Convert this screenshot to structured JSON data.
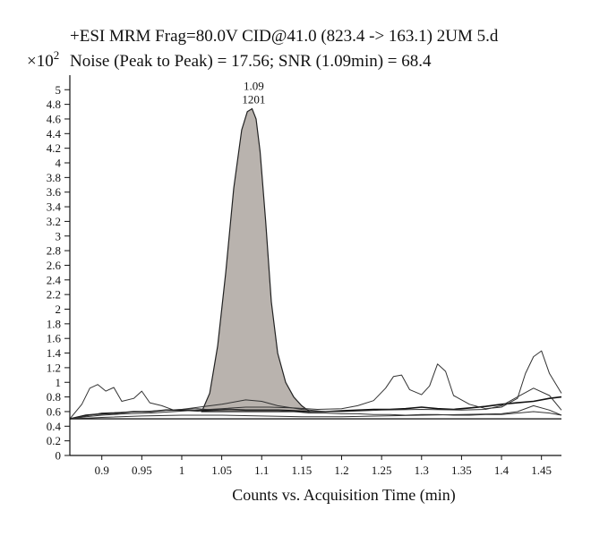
{
  "chart_data": {
    "type": "line",
    "title": "+ESI MRM Frag=80.0V CID@41.0 (823.4 -> 163.1) 2UM 5.d",
    "subtitle": "Noise (Peak to Peak) = 17.56; SNR (1.09min) = 68.4",
    "y_multiplier": "×10",
    "y_multiplier_exp": "2",
    "xlabel": "Counts vs. Acquisition Time (min)",
    "ylabel": "",
    "xlim": [
      0.86,
      1.475
    ],
    "ylim": [
      0,
      5.15
    ],
    "x_ticks": [
      0.9,
      0.95,
      1,
      1.05,
      1.1,
      1.15,
      1.2,
      1.25,
      1.3,
      1.35,
      1.4,
      1.45
    ],
    "x_tick_labels": [
      "0.9",
      "0.95",
      "1",
      "1.05",
      "1.1",
      "1.15",
      "1.2",
      "1.25",
      "1.3",
      "1.35",
      "1.4",
      "1.45"
    ],
    "y_ticks": [
      0,
      0.2,
      0.4,
      0.6,
      0.8,
      1,
      1.2,
      1.4,
      1.6,
      1.8,
      2,
      2.2,
      2.4,
      2.6,
      2.8,
      3,
      3.2,
      3.4,
      3.6,
      3.8,
      4,
      4.2,
      4.4,
      4.6,
      4.8,
      5
    ],
    "y_tick_labels": [
      "0",
      "0.2",
      "0.4",
      "0.6",
      "0.8",
      "1",
      "1.2",
      "1.4",
      "1.6",
      "1.8",
      "2",
      "2.2",
      "2.4",
      "2.6",
      "2.8",
      "3",
      "3.2",
      "3.4",
      "3.6",
      "3.8",
      "4",
      "4.2",
      "4.4",
      "4.6",
      "4.8",
      "5"
    ],
    "grid": false,
    "peak_annotation": {
      "x": 1.09,
      "y": 4.75,
      "lines": [
        "1.09",
        "1201"
      ]
    },
    "integrated_peak": {
      "fill": "#b9b3ae",
      "baseline": 0.6,
      "x": [
        1.025,
        1.035,
        1.045,
        1.055,
        1.065,
        1.075,
        1.082,
        1.088,
        1.093,
        1.098,
        1.105,
        1.112,
        1.12,
        1.13,
        1.14,
        1.15,
        1.16
      ],
      "y": [
        0.6,
        0.85,
        1.5,
        2.5,
        3.65,
        4.45,
        4.7,
        4.74,
        4.6,
        4.15,
        3.2,
        2.1,
        1.4,
        1.0,
        0.8,
        0.68,
        0.6
      ]
    },
    "series": [
      {
        "color": "#111111",
        "width": 1.6,
        "x": [
          0.86,
          0.88,
          0.9,
          0.92,
          0.94,
          0.96,
          0.98,
          1.0,
          1.02,
          1.04,
          1.06,
          1.08,
          1.1,
          1.12,
          1.14,
          1.16,
          1.18,
          1.2,
          1.22,
          1.24,
          1.26,
          1.28,
          1.3,
          1.32,
          1.34,
          1.36,
          1.38,
          1.4,
          1.42,
          1.44,
          1.46,
          1.475
        ],
        "y": [
          0.5,
          0.55,
          0.57,
          0.58,
          0.6,
          0.6,
          0.62,
          0.62,
          0.61,
          0.62,
          0.63,
          0.62,
          0.62,
          0.62,
          0.61,
          0.6,
          0.6,
          0.61,
          0.62,
          0.63,
          0.63,
          0.64,
          0.66,
          0.64,
          0.63,
          0.65,
          0.67,
          0.7,
          0.72,
          0.74,
          0.78,
          0.8
        ]
      },
      {
        "color": "#333333",
        "width": 1,
        "x": [
          0.86,
          0.875,
          0.885,
          0.895,
          0.905,
          0.915,
          0.925,
          0.94,
          0.95,
          0.96,
          0.975,
          0.99,
          1.0,
          1.02,
          1.04,
          1.06,
          1.08,
          1.1,
          1.12,
          1.14,
          1.16,
          1.18,
          1.2,
          1.22,
          1.24,
          1.26,
          1.28,
          1.3,
          1.32,
          1.34,
          1.36,
          1.38,
          1.4,
          1.42,
          1.44,
          1.46,
          1.475
        ],
        "y": [
          0.5,
          0.7,
          0.92,
          0.97,
          0.88,
          0.93,
          0.74,
          0.78,
          0.88,
          0.72,
          0.68,
          0.62,
          0.63,
          0.64,
          0.62,
          0.63,
          0.62,
          0.62,
          0.62,
          0.6,
          0.58,
          0.58,
          0.57,
          0.57,
          0.56,
          0.56,
          0.55,
          0.56,
          0.56,
          0.55,
          0.55,
          0.56,
          0.56,
          0.58,
          0.6,
          0.58,
          0.55
        ]
      },
      {
        "color": "#333333",
        "width": 1,
        "x": [
          0.86,
          0.88,
          0.9,
          0.93,
          0.96,
          0.99,
          1.02,
          1.05,
          1.08,
          1.11,
          1.14,
          1.17,
          1.2,
          1.22,
          1.24,
          1.255,
          1.265,
          1.275,
          1.285,
          1.3,
          1.31,
          1.32,
          1.33,
          1.34,
          1.36,
          1.38,
          1.4,
          1.42,
          1.43,
          1.44,
          1.45,
          1.46,
          1.475
        ],
        "y": [
          0.5,
          0.53,
          0.55,
          0.57,
          0.58,
          0.6,
          0.62,
          0.64,
          0.66,
          0.66,
          0.65,
          0.63,
          0.64,
          0.68,
          0.75,
          0.92,
          1.08,
          1.1,
          0.9,
          0.83,
          0.95,
          1.25,
          1.15,
          0.82,
          0.7,
          0.64,
          0.66,
          0.78,
          1.12,
          1.35,
          1.43,
          1.12,
          0.85
        ]
      },
      {
        "color": "#333333",
        "width": 1,
        "x": [
          0.86,
          0.9,
          0.95,
          1.0,
          1.05,
          1.08,
          1.1,
          1.12,
          1.15,
          1.18,
          1.2,
          1.25,
          1.3,
          1.35,
          1.38,
          1.4,
          1.42,
          1.44,
          1.46,
          1.475
        ],
        "y": [
          0.5,
          0.58,
          0.6,
          0.63,
          0.7,
          0.76,
          0.74,
          0.68,
          0.63,
          0.6,
          0.6,
          0.62,
          0.63,
          0.62,
          0.63,
          0.68,
          0.8,
          0.92,
          0.82,
          0.62
        ]
      },
      {
        "color": "#333333",
        "width": 1,
        "x": [
          0.86,
          0.9,
          0.95,
          1.0,
          1.05,
          1.1,
          1.15,
          1.2,
          1.25,
          1.3,
          1.35,
          1.4,
          1.42,
          1.44,
          1.46,
          1.475
        ],
        "y": [
          0.5,
          0.52,
          0.54,
          0.55,
          0.55,
          0.54,
          0.53,
          0.53,
          0.54,
          0.55,
          0.56,
          0.57,
          0.6,
          0.68,
          0.62,
          0.55
        ]
      },
      {
        "color": "#222222",
        "width": 1.4,
        "x": [
          0.86,
          1.475
        ],
        "y": [
          0.5,
          0.5
        ]
      }
    ]
  }
}
